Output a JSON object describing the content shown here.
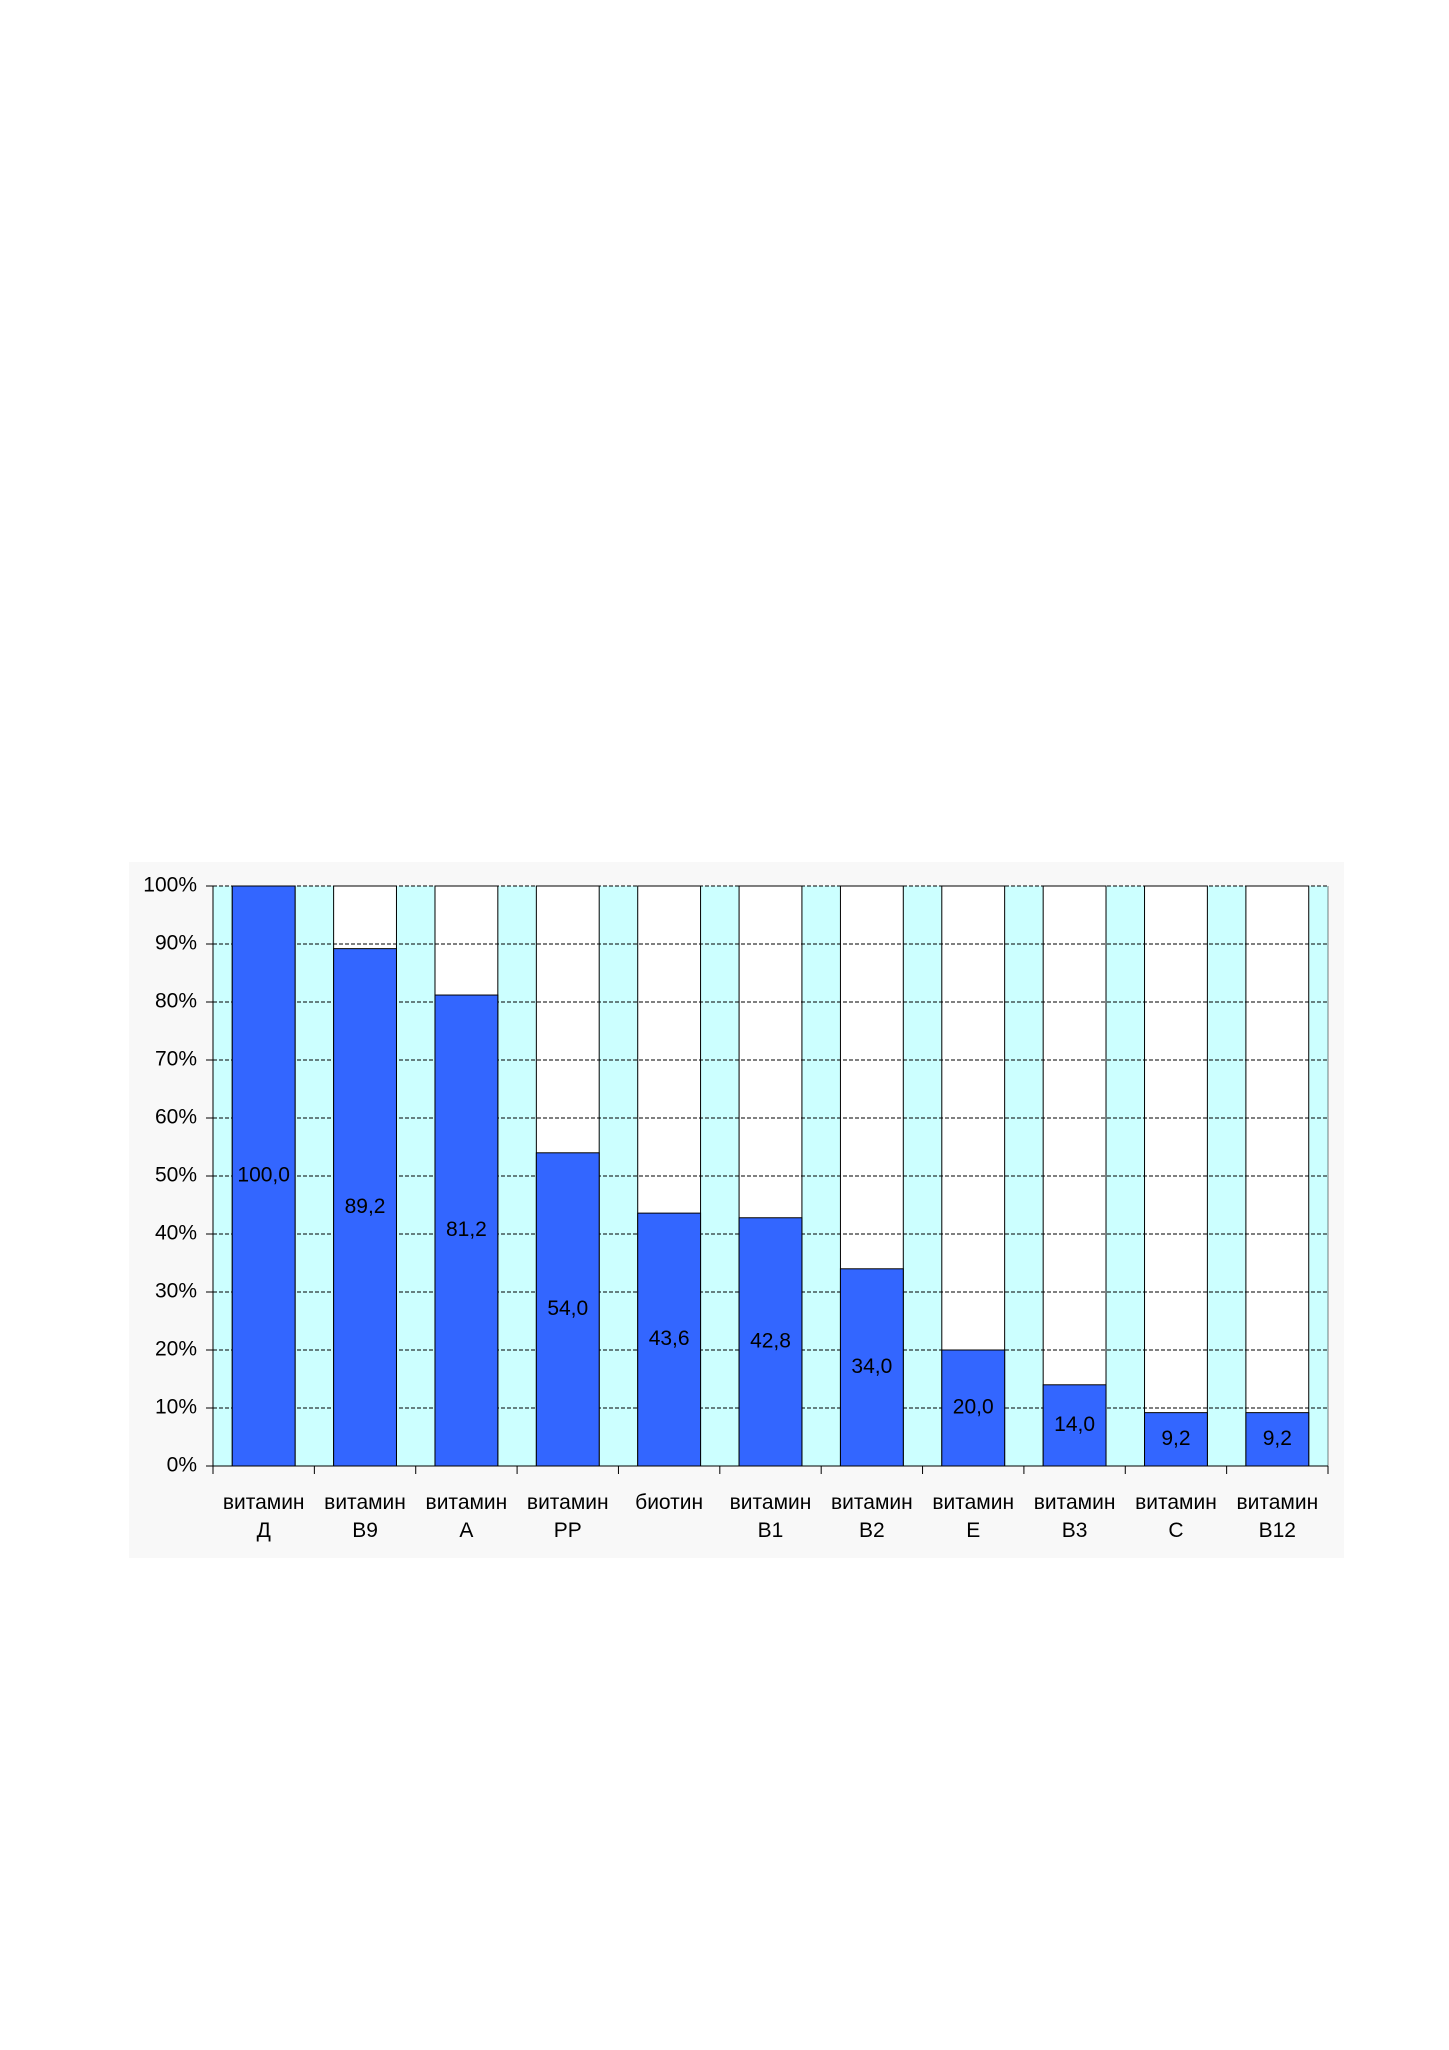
{
  "chart_data": {
    "type": "bar",
    "categories": [
      "витамин Д",
      "витамин В9",
      "витамин А",
      "витамин РР",
      "биотин",
      "витамин В1",
      "витамин В2",
      "витамин Е",
      "витамин В3",
      "витамин С",
      "витамин В12"
    ],
    "values": [
      100,
      89.2,
      81.2,
      54,
      43.6,
      42.8,
      34,
      20,
      14,
      9.2,
      9.2
    ],
    "value_labels": [
      "100,0",
      "89,2",
      "81,2",
      "54,0",
      "43,6",
      "42,8",
      "34,0",
      "20,0",
      "14,0",
      "9,2",
      "9,2"
    ],
    "color": "#3366ff",
    "ylim": [
      0,
      100
    ],
    "yticks": [
      {
        "value": 0,
        "label": "0%"
      },
      {
        "value": 10,
        "label": "10%"
      },
      {
        "value": 20,
        "label": "20%"
      },
      {
        "value": 30,
        "label": "30%"
      },
      {
        "value": 40,
        "label": "40%"
      },
      {
        "value": 50,
        "label": "50%"
      },
      {
        "value": 60,
        "label": "60%"
      },
      {
        "value": 70,
        "label": "70%"
      },
      {
        "value": 80,
        "label": "80%"
      },
      {
        "value": 90,
        "label": "90%"
      },
      {
        "value": 100,
        "label": "100%"
      }
    ],
    "grid": true
  }
}
